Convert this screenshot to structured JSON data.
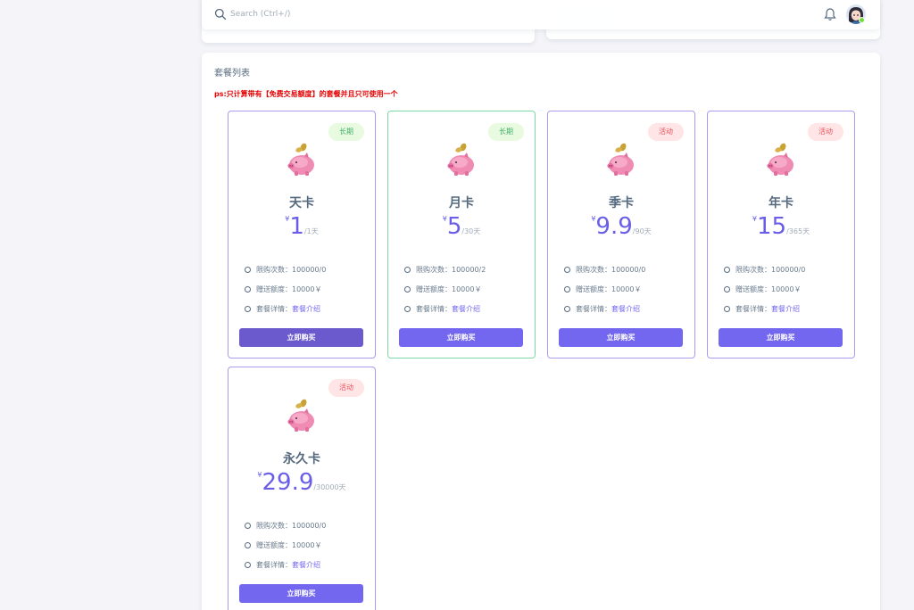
{
  "navbar": {
    "search_placeholder": "Search (Ctrl+/)"
  },
  "main": {
    "title": "套餐列表",
    "notice": "ps:只计算带有【免费交易额度】的套餐并且只可使用一个"
  },
  "plans": [
    {
      "badge": "长期",
      "badge_type": "long",
      "name": "天卡",
      "currency": "¥",
      "price": "1",
      "period": "/1天",
      "limit": "限购次数：100000/0",
      "gift": "赠送额度：10000￥",
      "detail_label": "套餐详情：",
      "detail_link": "套餐介绍",
      "buy": "立即购买"
    },
    {
      "badge": "长期",
      "badge_type": "long",
      "name": "月卡",
      "currency": "¥",
      "price": "5",
      "period": "/30天",
      "limit": "限购次数：100000/2",
      "gift": "赠送额度：10000￥",
      "detail_label": "套餐详情：",
      "detail_link": "套餐介绍",
      "buy": "立即购买"
    },
    {
      "badge": "活动",
      "badge_type": "active",
      "name": "季卡",
      "currency": "¥",
      "price": "9.9",
      "period": "/90天",
      "limit": "限购次数：100000/0",
      "gift": "赠送额度：10000￥",
      "detail_label": "套餐详情：",
      "detail_link": "套餐介绍",
      "buy": "立即购买"
    },
    {
      "badge": "活动",
      "badge_type": "active",
      "name": "年卡",
      "currency": "¥",
      "price": "15",
      "period": "/365天",
      "limit": "限购次数：100000/0",
      "gift": "赠送额度：10000￥",
      "detail_label": "套餐详情：",
      "detail_link": "套餐介绍",
      "buy": "立即购买"
    },
    {
      "badge": "活动",
      "badge_type": "active",
      "name": "永久卡",
      "currency": "¥",
      "price": "29.9",
      "period": "/30000天",
      "limit": "限购次数：100000/0",
      "gift": "赠送额度：10000￥",
      "detail_label": "套餐详情：",
      "detail_link": "套餐介绍",
      "buy": "立即购买"
    }
  ],
  "colors": {
    "accent": "#7367f0",
    "long_badge": "#45b16d",
    "active_badge": "#e8505b",
    "notice": "#e60000"
  }
}
